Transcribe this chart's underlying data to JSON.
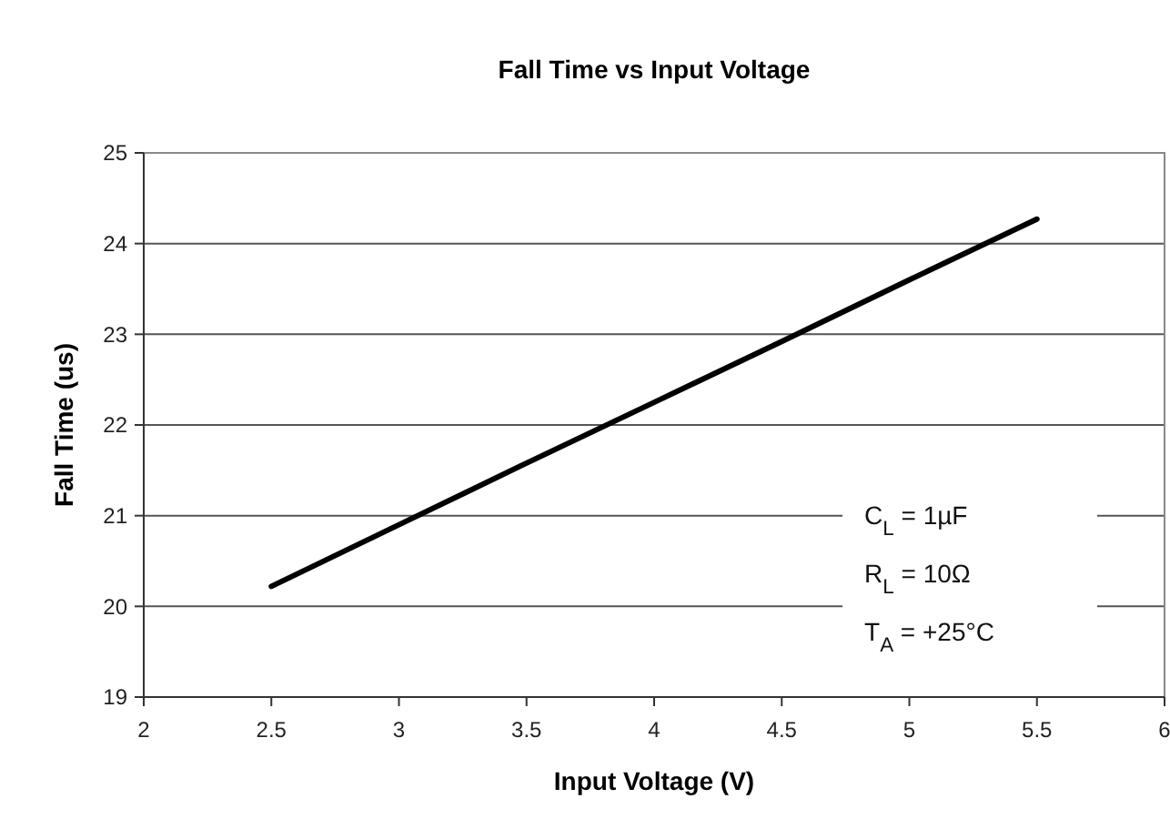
{
  "chart_data": {
    "type": "line",
    "title": "Fall Time vs Input Voltage",
    "xlabel": "Input Voltage (V)",
    "ylabel": "Fall Time (us)",
    "x": [
      2.5,
      3,
      3.5,
      4,
      4.5,
      5,
      5.5
    ],
    "series": [
      {
        "color": "#000000",
        "values": [
          20.22,
          20.9,
          21.58,
          22.25,
          22.92,
          23.6,
          24.27
        ]
      }
    ],
    "xlim": [
      2,
      6
    ],
    "xticks": [
      2,
      2.5,
      3,
      3.5,
      4,
      4.5,
      5,
      5.5,
      6
    ],
    "ylim": [
      19,
      25
    ],
    "yticks": [
      19,
      20,
      21,
      22,
      23,
      24,
      25
    ],
    "grid": "y",
    "marker": "none",
    "line_style": "solid",
    "annotations": [
      "C$_{L}$ = 1µF",
      "R$_{L}$ = 10Ω",
      "T$_{A}$ = +25°C"
    ]
  }
}
